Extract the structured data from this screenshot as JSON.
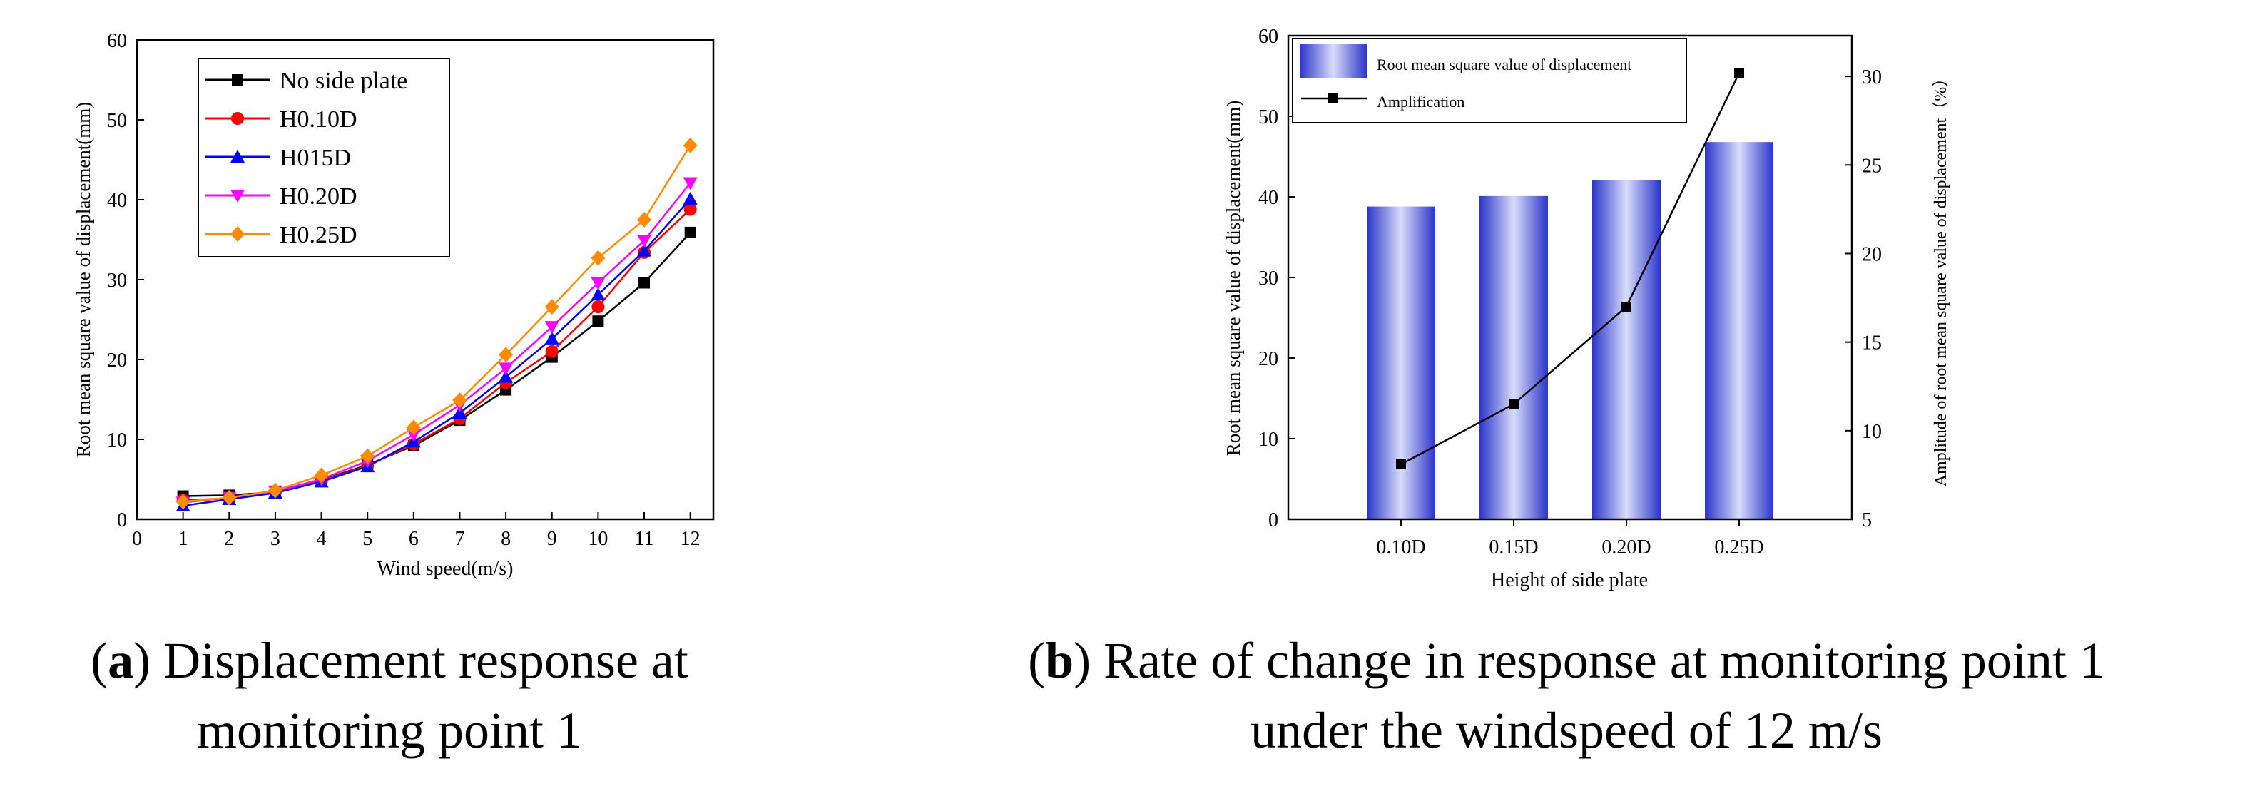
{
  "chart_data": [
    {
      "id": "a",
      "type": "line",
      "xlabel": "Wind speed(m/s)",
      "ylabel": "Root mean square value of displacement(mm)",
      "xlim": [
        0,
        12.5
      ],
      "ylim": [
        0,
        60
      ],
      "xticks": [
        0,
        1,
        2,
        3,
        4,
        5,
        6,
        7,
        8,
        9,
        10,
        11,
        12
      ],
      "yticks": [
        0,
        10,
        20,
        30,
        40,
        50,
        60
      ],
      "x": [
        1,
        2,
        3,
        4,
        5,
        6,
        7,
        8,
        9,
        10,
        11,
        12
      ],
      "legend_position": "top-left",
      "series": [
        {
          "name": "No side plate",
          "color": "#000000",
          "marker": "square",
          "values": [
            2.9,
            3.0,
            3.4,
            4.9,
            6.8,
            9.2,
            12.4,
            16.2,
            20.3,
            24.8,
            29.6,
            35.9
          ]
        },
        {
          "name": "H0.10D",
          "color": "#ff0000",
          "marker": "circle",
          "values": [
            2.4,
            2.6,
            3.4,
            4.8,
            6.7,
            9.4,
            12.6,
            17.1,
            21.0,
            26.6,
            33.4,
            38.8
          ]
        },
        {
          "name": "H015D",
          "color": "#0000ff",
          "marker": "triangle-up",
          "values": [
            1.7,
            2.5,
            3.3,
            4.7,
            6.6,
            9.7,
            13.3,
            17.8,
            22.6,
            28.1,
            33.6,
            40.1
          ]
        },
        {
          "name": "H0.20D",
          "color": "#ff00ff",
          "marker": "triangle-down",
          "values": [
            2.1,
            2.7,
            3.5,
            5.0,
            7.3,
            10.6,
            14.3,
            18.9,
            24.1,
            29.6,
            34.9,
            42.1
          ]
        },
        {
          "name": "H0.25D",
          "color": "#ff8c00",
          "marker": "diamond",
          "values": [
            2.2,
            2.7,
            3.6,
            5.5,
            7.9,
            11.5,
            14.9,
            20.6,
            26.6,
            32.7,
            37.5,
            46.8
          ]
        }
      ]
    },
    {
      "id": "b",
      "type": "bar",
      "xlabel": "Height of side plate",
      "ylabel": "Root mean square value of displacement(mm)",
      "ylabel_right": "Amplitude of root mean square value of displacement（%）",
      "categories": [
        "0.10D",
        "0.15D",
        "0.20D",
        "0.25D"
      ],
      "ylim": [
        0,
        60
      ],
      "yticks": [
        0,
        10,
        20,
        30,
        40,
        50,
        60
      ],
      "ylim_right": [
        5,
        32.3
      ],
      "yticks_right": [
        5,
        10,
        15,
        20,
        25,
        30
      ],
      "legend_position": "top-left",
      "series": [
        {
          "name": "Root mean square value of displacement",
          "type": "bar",
          "color": "#3a46d8",
          "values": [
            38.8,
            40.1,
            42.1,
            46.8
          ]
        },
        {
          "name": "Amplification",
          "type": "line",
          "axis": "right",
          "color": "#000000",
          "marker": "square",
          "values": [
            8.1,
            11.5,
            17.0,
            30.2
          ]
        }
      ]
    }
  ],
  "captions": {
    "a": {
      "letter": "a",
      "line1": " Displacement response at",
      "line2": "monitoring point 1"
    },
    "b": {
      "letter": "b",
      "line1": " Rate of change in response at monitoring point 1",
      "line2": "under the windspeed of 12 m/s"
    }
  }
}
